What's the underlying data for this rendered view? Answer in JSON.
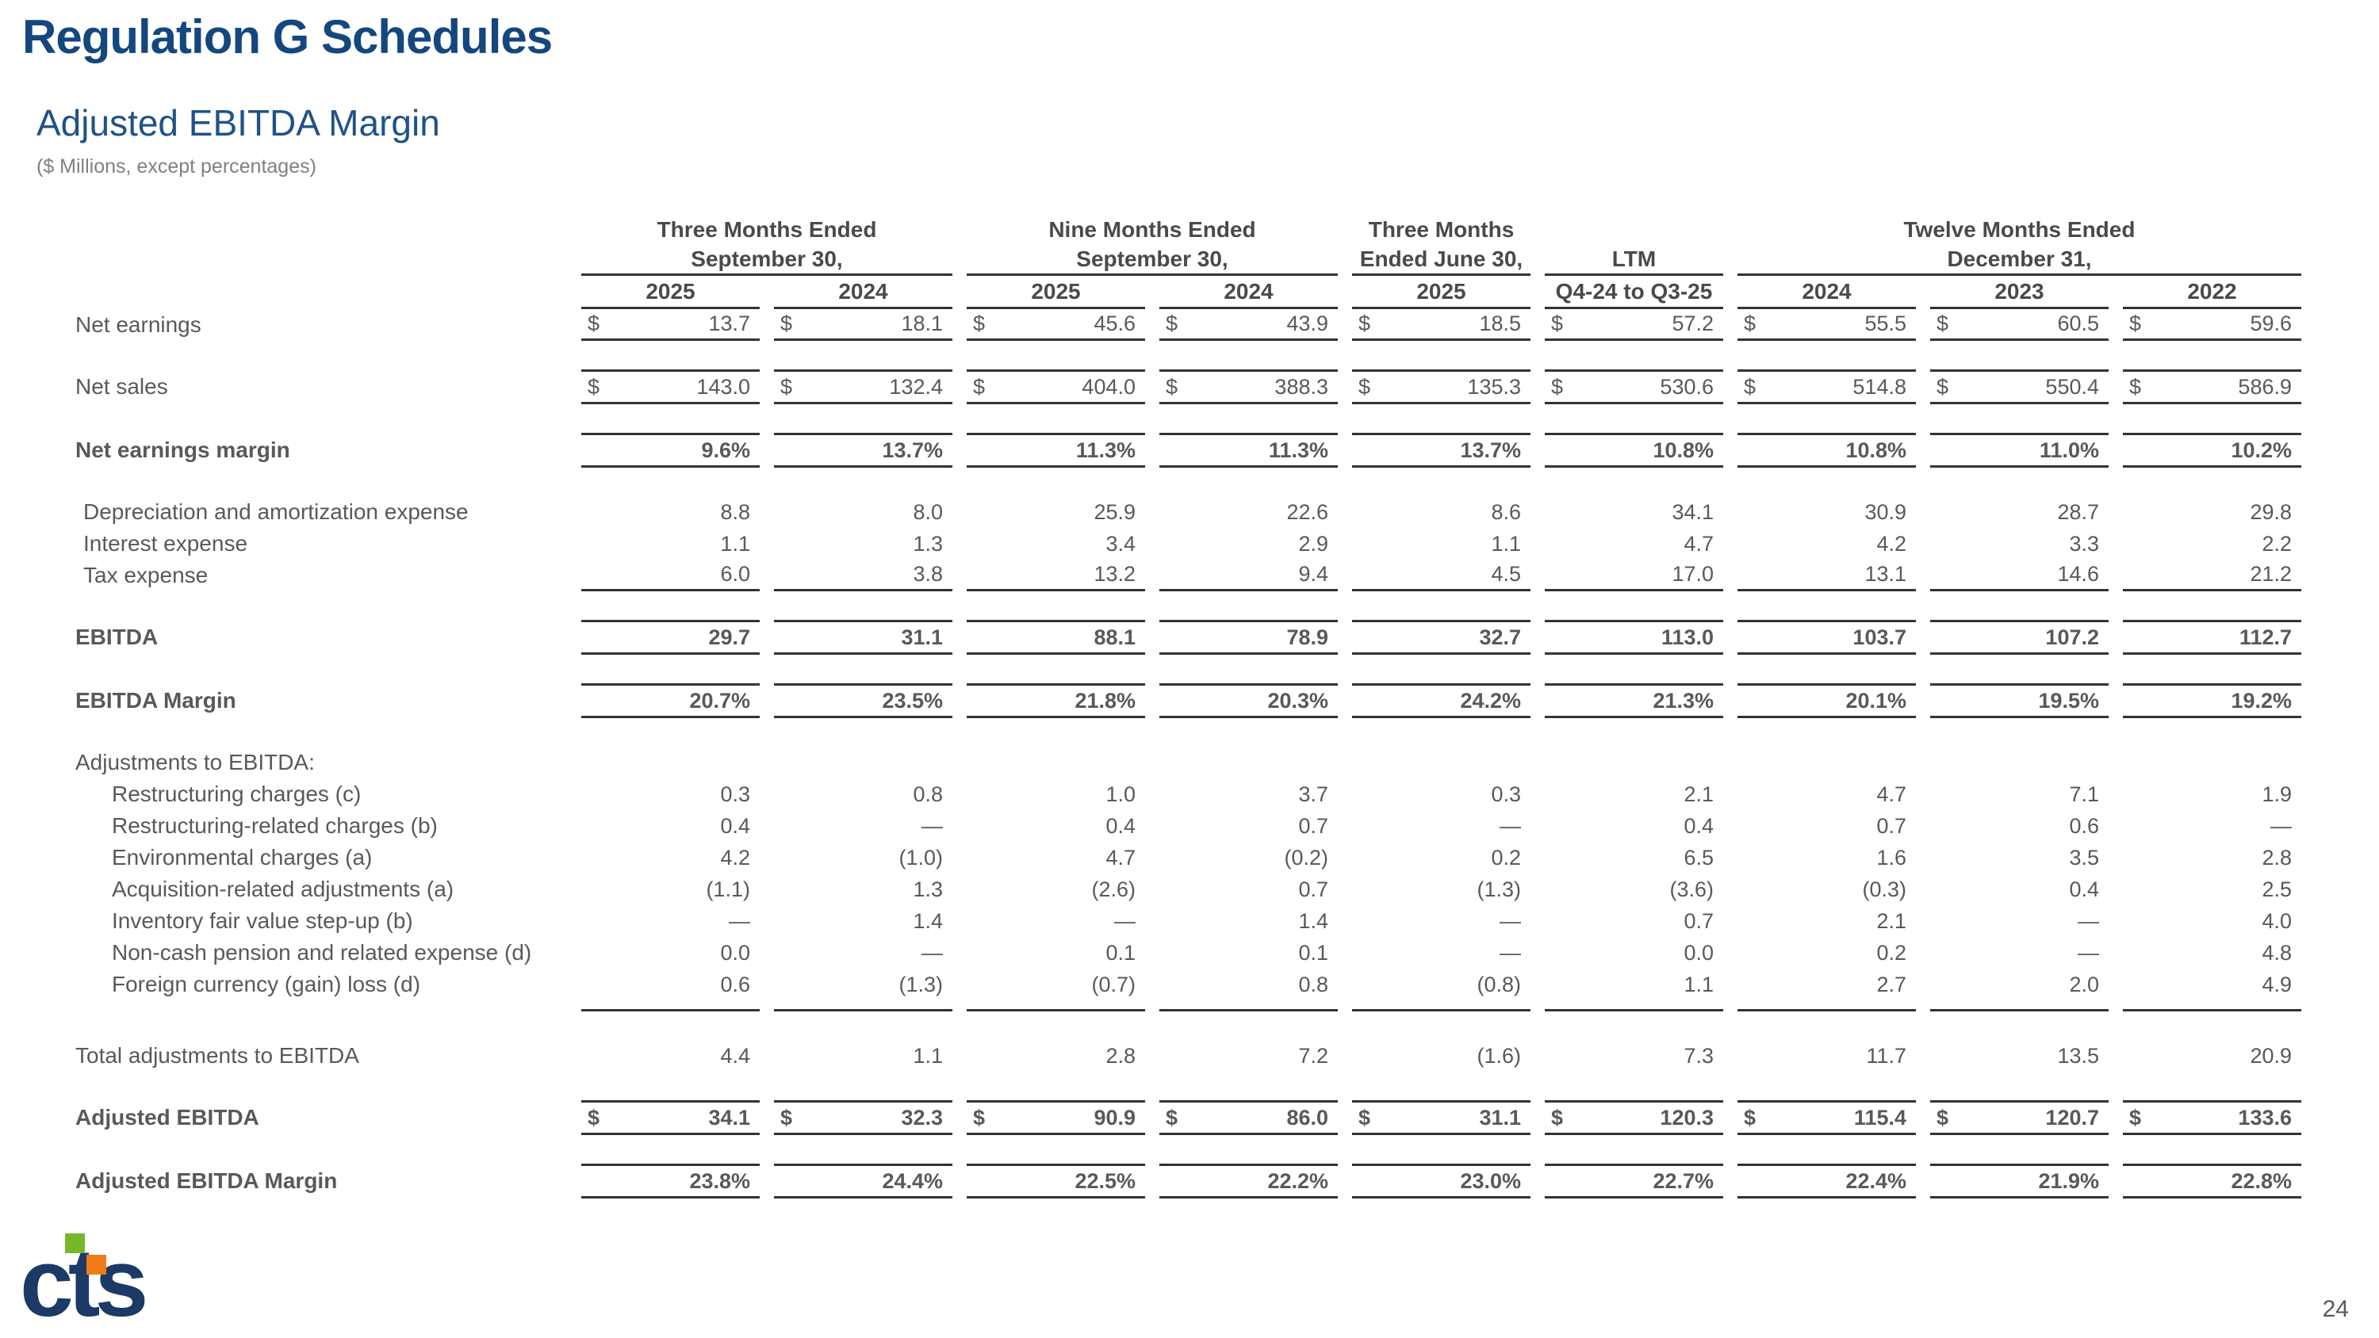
{
  "slide": {
    "title": "Regulation G Schedules",
    "subtitle": "Adjusted EBITDA Margin",
    "note": "($ Millions, except percentages)",
    "page_number": "24",
    "logo_text": "cts",
    "colors": {
      "title_navy": "#14477E",
      "subtitle_navy": "#1F5386",
      "body_gray": "#595959",
      "rule_line": "#333333",
      "logo_navy": "#1B3A66",
      "logo_green": "#76B82A",
      "logo_orange": "#EF7D1A"
    }
  },
  "table": {
    "column_groups": [
      {
        "lines": [
          "Three Months Ended",
          "September 30,"
        ],
        "span": 2
      },
      {
        "lines": [
          "Nine Months Ended",
          "September 30,"
        ],
        "span": 2
      },
      {
        "lines": [
          "Three Months",
          "Ended June 30,"
        ],
        "span": 1
      },
      {
        "lines": [
          "",
          "LTM"
        ],
        "span": 1
      },
      {
        "lines": [
          "Twelve Months Ended",
          "December 31,"
        ],
        "span": 3
      }
    ],
    "year_headers": [
      "2025",
      "2024",
      "2025",
      "2024",
      "2025",
      "Q4-24 to Q3-25",
      "2024",
      "2023",
      "2022"
    ],
    "rows": [
      {
        "type": "data",
        "label": "Net earnings",
        "dollar": true,
        "lines": "bottom",
        "values": [
          "13.7",
          "18.1",
          "45.6",
          "43.9",
          "18.5",
          "57.2",
          "55.5",
          "60.5",
          "59.6"
        ]
      },
      {
        "type": "spacer"
      },
      {
        "type": "data",
        "label": "Net sales",
        "dollar": true,
        "lines": "both",
        "values": [
          "143.0",
          "132.4",
          "404.0",
          "388.3",
          "135.3",
          "530.6",
          "514.8",
          "550.4",
          "586.9"
        ]
      },
      {
        "type": "spacer"
      },
      {
        "type": "data",
        "label": "Net earnings margin",
        "bold": true,
        "lines": "both",
        "values": [
          "9.6%",
          "13.7%",
          "11.3%",
          "11.3%",
          "13.7%",
          "10.8%",
          "10.8%",
          "11.0%",
          "10.2%"
        ]
      },
      {
        "type": "spacer"
      },
      {
        "type": "data",
        "label": "Depreciation and amortization expense",
        "indent": 1,
        "values": [
          "8.8",
          "8.0",
          "25.9",
          "22.6",
          "8.6",
          "34.1",
          "30.9",
          "28.7",
          "29.8"
        ]
      },
      {
        "type": "data",
        "label": "Interest expense",
        "indent": 1,
        "values": [
          "1.1",
          "1.3",
          "3.4",
          "2.9",
          "1.1",
          "4.7",
          "4.2",
          "3.3",
          "2.2"
        ]
      },
      {
        "type": "data",
        "label": "Tax expense",
        "indent": 1,
        "lines": "bottom",
        "values": [
          "6.0",
          "3.8",
          "13.2",
          "9.4",
          "4.5",
          "17.0",
          "13.1",
          "14.6",
          "21.2"
        ]
      },
      {
        "type": "spacer"
      },
      {
        "type": "data",
        "label": "EBITDA",
        "bold": true,
        "lines": "both",
        "values": [
          "29.7",
          "31.1",
          "88.1",
          "78.9",
          "32.7",
          "113.0",
          "103.7",
          "107.2",
          "112.7"
        ]
      },
      {
        "type": "spacer"
      },
      {
        "type": "data",
        "label": "EBITDA Margin",
        "bold": true,
        "lines": "both",
        "values": [
          "20.7%",
          "23.5%",
          "21.8%",
          "20.3%",
          "24.2%",
          "21.3%",
          "20.1%",
          "19.5%",
          "19.2%"
        ]
      },
      {
        "type": "spacer"
      },
      {
        "type": "section",
        "label": "Adjustments to EBITDA:"
      },
      {
        "type": "data",
        "label": "Restructuring charges (c)",
        "indent": 2,
        "values": [
          "0.3",
          "0.8",
          "1.0",
          "3.7",
          "0.3",
          "2.1",
          "4.7",
          "7.1",
          "1.9"
        ]
      },
      {
        "type": "data",
        "label": "Restructuring-related charges (b)",
        "indent": 2,
        "values": [
          "0.4",
          "—",
          "0.4",
          "0.7",
          "—",
          "0.4",
          "0.7",
          "0.6",
          "—"
        ]
      },
      {
        "type": "data",
        "label": "Environmental charges (a)",
        "indent": 2,
        "values": [
          "4.2",
          "(1.0)",
          "4.7",
          "(0.2)",
          "0.2",
          "6.5",
          "1.6",
          "3.5",
          "2.8"
        ]
      },
      {
        "type": "data",
        "label": "Acquisition-related adjustments (a)",
        "indent": 2,
        "values": [
          "(1.1)",
          "1.3",
          "(2.6)",
          "0.7",
          "(1.3)",
          "(3.6)",
          "(0.3)",
          "0.4",
          "2.5"
        ]
      },
      {
        "type": "data",
        "label": "Inventory fair value step-up (b)",
        "indent": 2,
        "values": [
          "—",
          "1.4",
          "—",
          "1.4",
          "—",
          "0.7",
          "2.1",
          "—",
          "4.0"
        ]
      },
      {
        "type": "data",
        "label": "Non-cash pension and related expense (d)",
        "indent": 2,
        "values": [
          "0.0",
          "—",
          "0.1",
          "0.1",
          "—",
          "0.0",
          "0.2",
          "—",
          "4.8"
        ]
      },
      {
        "type": "data",
        "label": "Foreign currency (gain) loss (d)",
        "indent": 2,
        "values": [
          "0.6",
          "(1.3)",
          "(0.7)",
          "0.8",
          "(0.8)",
          "1.1",
          "2.7",
          "2.0",
          "4.9"
        ]
      },
      {
        "type": "spacer-line"
      },
      {
        "type": "spacer"
      },
      {
        "type": "data",
        "label": "Total adjustments to EBITDA",
        "values": [
          "4.4",
          "1.1",
          "2.8",
          "7.2",
          "(1.6)",
          "7.3",
          "11.7",
          "13.5",
          "20.9"
        ]
      },
      {
        "type": "spacer"
      },
      {
        "type": "data",
        "label": "Adjusted EBITDA",
        "bold": true,
        "dollar": true,
        "lines": "both",
        "values": [
          "34.1",
          "32.3",
          "90.9",
          "86.0",
          "31.1",
          "120.3",
          "115.4",
          "120.7",
          "133.6"
        ]
      },
      {
        "type": "spacer"
      },
      {
        "type": "data",
        "label": "Adjusted EBITDA Margin",
        "bold": true,
        "lines": "both",
        "values": [
          "23.8%",
          "24.4%",
          "22.5%",
          "22.2%",
          "23.0%",
          "22.7%",
          "22.4%",
          "21.9%",
          "22.8%"
        ]
      }
    ]
  }
}
